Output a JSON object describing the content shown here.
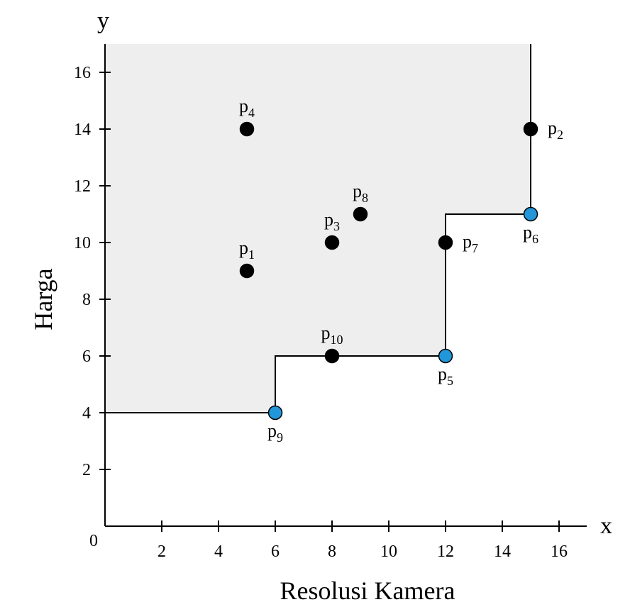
{
  "chart_data": {
    "type": "scatter",
    "title": "",
    "xlabel": "Resolusi Kamera",
    "ylabel": "Harga",
    "x_axis_letter": "x",
    "y_axis_letter": "y",
    "origin_label": "0",
    "xlim": [
      0,
      17
    ],
    "ylim": [
      0,
      17
    ],
    "xticks": [
      2,
      4,
      6,
      8,
      10,
      12,
      14,
      16
    ],
    "yticks": [
      2,
      4,
      6,
      8,
      10,
      12,
      14,
      16
    ],
    "grid": false,
    "colors": {
      "dominated": "#000000",
      "skyline": "#2196d8",
      "region": "#eeeeee",
      "line": "#000000"
    },
    "points": [
      {
        "label": "p",
        "sub": "1",
        "x": 5,
        "y": 9,
        "skyline": false,
        "label_pos": "top"
      },
      {
        "label": "p",
        "sub": "2",
        "x": 15,
        "y": 14,
        "skyline": false,
        "label_pos": "right"
      },
      {
        "label": "p",
        "sub": "3",
        "x": 8,
        "y": 10,
        "skyline": false,
        "label_pos": "top"
      },
      {
        "label": "p",
        "sub": "4",
        "x": 5,
        "y": 14,
        "skyline": false,
        "label_pos": "top"
      },
      {
        "label": "p",
        "sub": "5",
        "x": 12,
        "y": 6,
        "skyline": true,
        "label_pos": "bottom"
      },
      {
        "label": "p",
        "sub": "6",
        "x": 15,
        "y": 11,
        "skyline": true,
        "label_pos": "bottom"
      },
      {
        "label": "p",
        "sub": "7",
        "x": 12,
        "y": 10,
        "skyline": false,
        "label_pos": "right"
      },
      {
        "label": "p",
        "sub": "8",
        "x": 9,
        "y": 11,
        "skyline": false,
        "label_pos": "top"
      },
      {
        "label": "p",
        "sub": "9",
        "x": 6,
        "y": 4,
        "skyline": true,
        "label_pos": "bottom"
      },
      {
        "label": "p",
        "sub": "10",
        "x": 8,
        "y": 6,
        "skyline": false,
        "label_pos": "top"
      }
    ],
    "dominance_boundary": [
      [
        0,
        4
      ],
      [
        6,
        4
      ],
      [
        6,
        6
      ],
      [
        12,
        6
      ],
      [
        12,
        11
      ],
      [
        15,
        11
      ],
      [
        15,
        17
      ]
    ]
  }
}
